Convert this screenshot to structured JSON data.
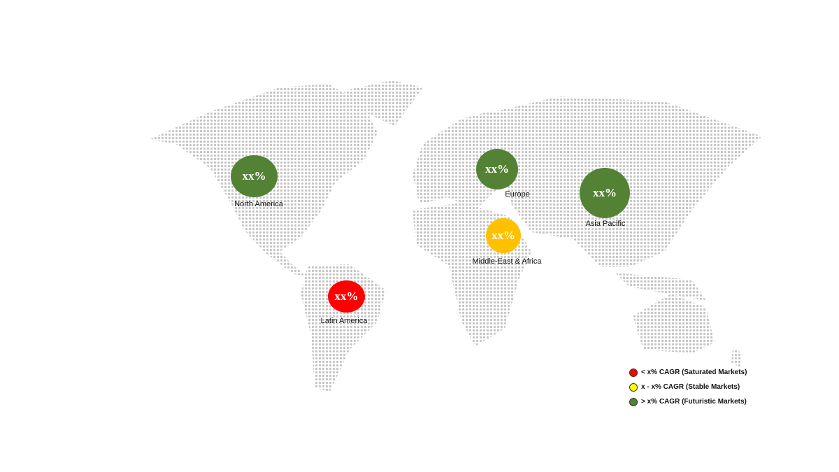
{
  "regions": [
    {
      "name": "North America",
      "value": "xx%",
      "color": "#548235"
    },
    {
      "name": "Europe",
      "value": "xx%",
      "color": "#548235"
    },
    {
      "name": "Asia Pacific",
      "value": "xx%",
      "color": "#548235"
    },
    {
      "name": "Middle-East & Africa",
      "value": "xx%",
      "color": "#ffc000"
    },
    {
      "name": "Latin America",
      "value": "xx%",
      "color": "#ff0000"
    }
  ],
  "legend": [
    {
      "label": "< x% CAGR (Saturated Markets)",
      "color": "#ff0000"
    },
    {
      "label": "x - x% CAGR (Stable Markets)",
      "color": "#ffff00"
    },
    {
      "label": "> x% CAGR (Futuristic Markets)",
      "color": "#548235"
    }
  ]
}
